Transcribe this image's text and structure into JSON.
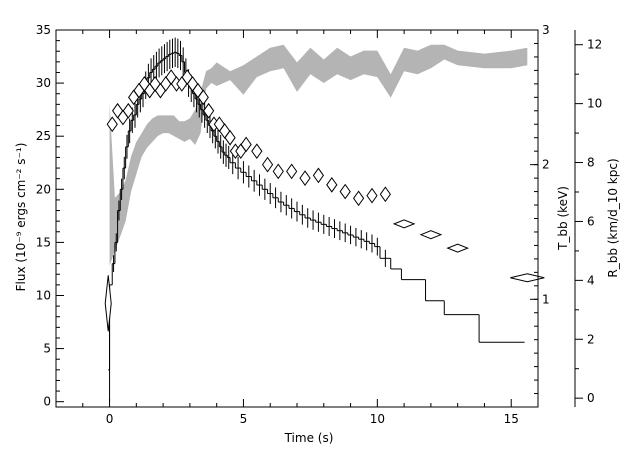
{
  "chart_data": {
    "type": "line",
    "xlabel": "Time (s)",
    "ylabel_left": "Flux (10⁻⁹ ergs cm⁻² s⁻¹)",
    "ylabel_right_1": "T_bb (keV)",
    "ylabel_right_2": "R_bb (km/d_10 kpc)",
    "xlim": [
      -2,
      16
    ],
    "ylim_flux": [
      -0.5,
      35
    ],
    "ylim_tbb": [
      0.2,
      3
    ],
    "ylim_rbb": [
      -0.3,
      12.5
    ],
    "xticks": [
      0,
      5,
      10,
      15
    ],
    "yticks_flux": [
      0,
      5,
      10,
      15,
      20,
      25,
      30,
      35
    ],
    "yticks_tbb": [
      1,
      2,
      3
    ],
    "yticks_rbb": [
      0,
      2,
      4,
      6,
      8,
      10,
      12
    ],
    "series": [
      {
        "marker": "histogram",
        "axis": "flux",
        "x": [
          -0.05,
          0.0,
          0.1,
          0.2,
          0.3,
          0.4,
          0.5,
          0.6,
          0.7,
          0.8,
          0.9,
          1.0,
          1.1,
          1.2,
          1.3,
          1.4,
          1.5,
          1.6,
          1.7,
          1.8,
          1.9,
          2.0,
          2.1,
          2.2,
          2.3,
          2.4,
          2.5,
          2.6,
          2.7,
          2.8,
          2.9,
          3.0,
          3.1,
          3.2,
          3.3,
          3.4,
          3.5,
          3.6,
          3.7,
          3.8,
          3.9,
          4.0,
          4.1,
          4.2,
          4.3,
          4.4,
          4.5,
          4.7,
          4.9,
          5.1,
          5.3,
          5.5,
          5.7,
          5.9,
          6.1,
          6.3,
          6.5,
          6.7,
          6.9,
          7.1,
          7.3,
          7.5,
          7.7,
          7.9,
          8.1,
          8.3,
          8.5,
          8.7,
          8.9,
          9.1,
          9.3,
          9.5,
          9.7,
          9.9,
          10.1,
          10.5,
          10.9,
          11.8,
          12.5,
          13.8,
          15.5
        ],
        "y": [
          3,
          11,
          13,
          15,
          18,
          20,
          22,
          24,
          25.5,
          26.5,
          27,
          28,
          28.5,
          29,
          29.8,
          30.5,
          31,
          31.3,
          31.6,
          31.9,
          32.1,
          32.3,
          32.5,
          32.7,
          32.8,
          32.9,
          32.8,
          32.6,
          32,
          31,
          30,
          29.5,
          29,
          28.5,
          28,
          27.5,
          27,
          26.5,
          26,
          25.5,
          25,
          24.5,
          24,
          23.5,
          23.2,
          23,
          22.5,
          22,
          21.6,
          21.2,
          20.8,
          20.4,
          20,
          19.6,
          19.2,
          18.8,
          18.5,
          18.2,
          17.9,
          17.6,
          17.3,
          17.1,
          16.9,
          16.7,
          16.5,
          16.3,
          16.1,
          15.9,
          15.7,
          15.5,
          15.3,
          15.1,
          14.9,
          14.6,
          13.5,
          12.5,
          11.5,
          9.5,
          8.2,
          5.6,
          5.6
        ]
      },
      {
        "marker": "diamond",
        "axis": "tbb",
        "x": [
          -0.05,
          0.1,
          0.3,
          0.5,
          0.7,
          0.9,
          1.1,
          1.3,
          1.5,
          1.7,
          1.9,
          2.1,
          2.3,
          2.5,
          2.7,
          2.9,
          3.1,
          3.3,
          3.5,
          3.7,
          3.9,
          4.1,
          4.3,
          4.5,
          4.7,
          4.9,
          5.1,
          5.5,
          5.9,
          6.3,
          6.8,
          7.3,
          7.8,
          8.3,
          8.8,
          9.3,
          9.8,
          10.3,
          11.0,
          12.0,
          13.0,
          15.6
        ],
        "y": [
          0.97,
          2.3,
          2.4,
          2.35,
          2.4,
          2.5,
          2.55,
          2.6,
          2.55,
          2.6,
          2.55,
          2.6,
          2.65,
          2.6,
          2.6,
          2.65,
          2.6,
          2.55,
          2.5,
          2.4,
          2.3,
          2.3,
          2.25,
          2.2,
          2.1,
          2.1,
          2.15,
          2.1,
          2.0,
          1.95,
          1.95,
          1.9,
          1.92,
          1.85,
          1.8,
          1.75,
          1.77,
          1.78,
          1.56,
          1.48,
          1.38,
          1.16
        ]
      },
      {
        "marker": "band",
        "axis": "rbb",
        "x": [
          0,
          0.2,
          0.4,
          0.6,
          0.8,
          1.0,
          1.2,
          1.4,
          1.6,
          1.8,
          2.0,
          2.2,
          2.4,
          2.6,
          2.8,
          3.0,
          3.2,
          3.4,
          3.6,
          3.8,
          4.0,
          4.5,
          5.0,
          5.5,
          6.0,
          6.5,
          7.0,
          7.5,
          8.0,
          8.5,
          9.0,
          9.5,
          10.0,
          10.5,
          11.0,
          11.5,
          12.0,
          12.5,
          13.0,
          14.0,
          15.0,
          15.6
        ],
        "low": [
          4.5,
          5.0,
          5.5,
          6.0,
          7.0,
          7.6,
          8.2,
          8.5,
          8.7,
          8.9,
          9.0,
          9.0,
          8.9,
          8.8,
          8.7,
          8.8,
          8.6,
          9.0,
          10.5,
          10.7,
          10.6,
          10.8,
          10.3,
          10.9,
          11.1,
          11.2,
          10.4,
          11.0,
          10.7,
          11.0,
          10.8,
          11.0,
          10.9,
          10.2,
          11.1,
          11.0,
          11.2,
          11.5,
          11.3,
          11.2,
          11.2,
          11.3
        ],
        "high": [
          10.0,
          6.8,
          7.0,
          7.4,
          8.2,
          8.7,
          9.0,
          9.3,
          9.5,
          9.6,
          9.6,
          9.6,
          9.6,
          9.4,
          9.4,
          9.5,
          9.8,
          10.4,
          11.1,
          11.2,
          11.4,
          11.1,
          11.3,
          11.6,
          11.9,
          12.0,
          11.4,
          11.9,
          11.5,
          11.9,
          11.6,
          11.8,
          11.8,
          11.0,
          11.9,
          11.8,
          12.0,
          12.0,
          11.8,
          11.7,
          11.8,
          11.9
        ]
      }
    ]
  }
}
